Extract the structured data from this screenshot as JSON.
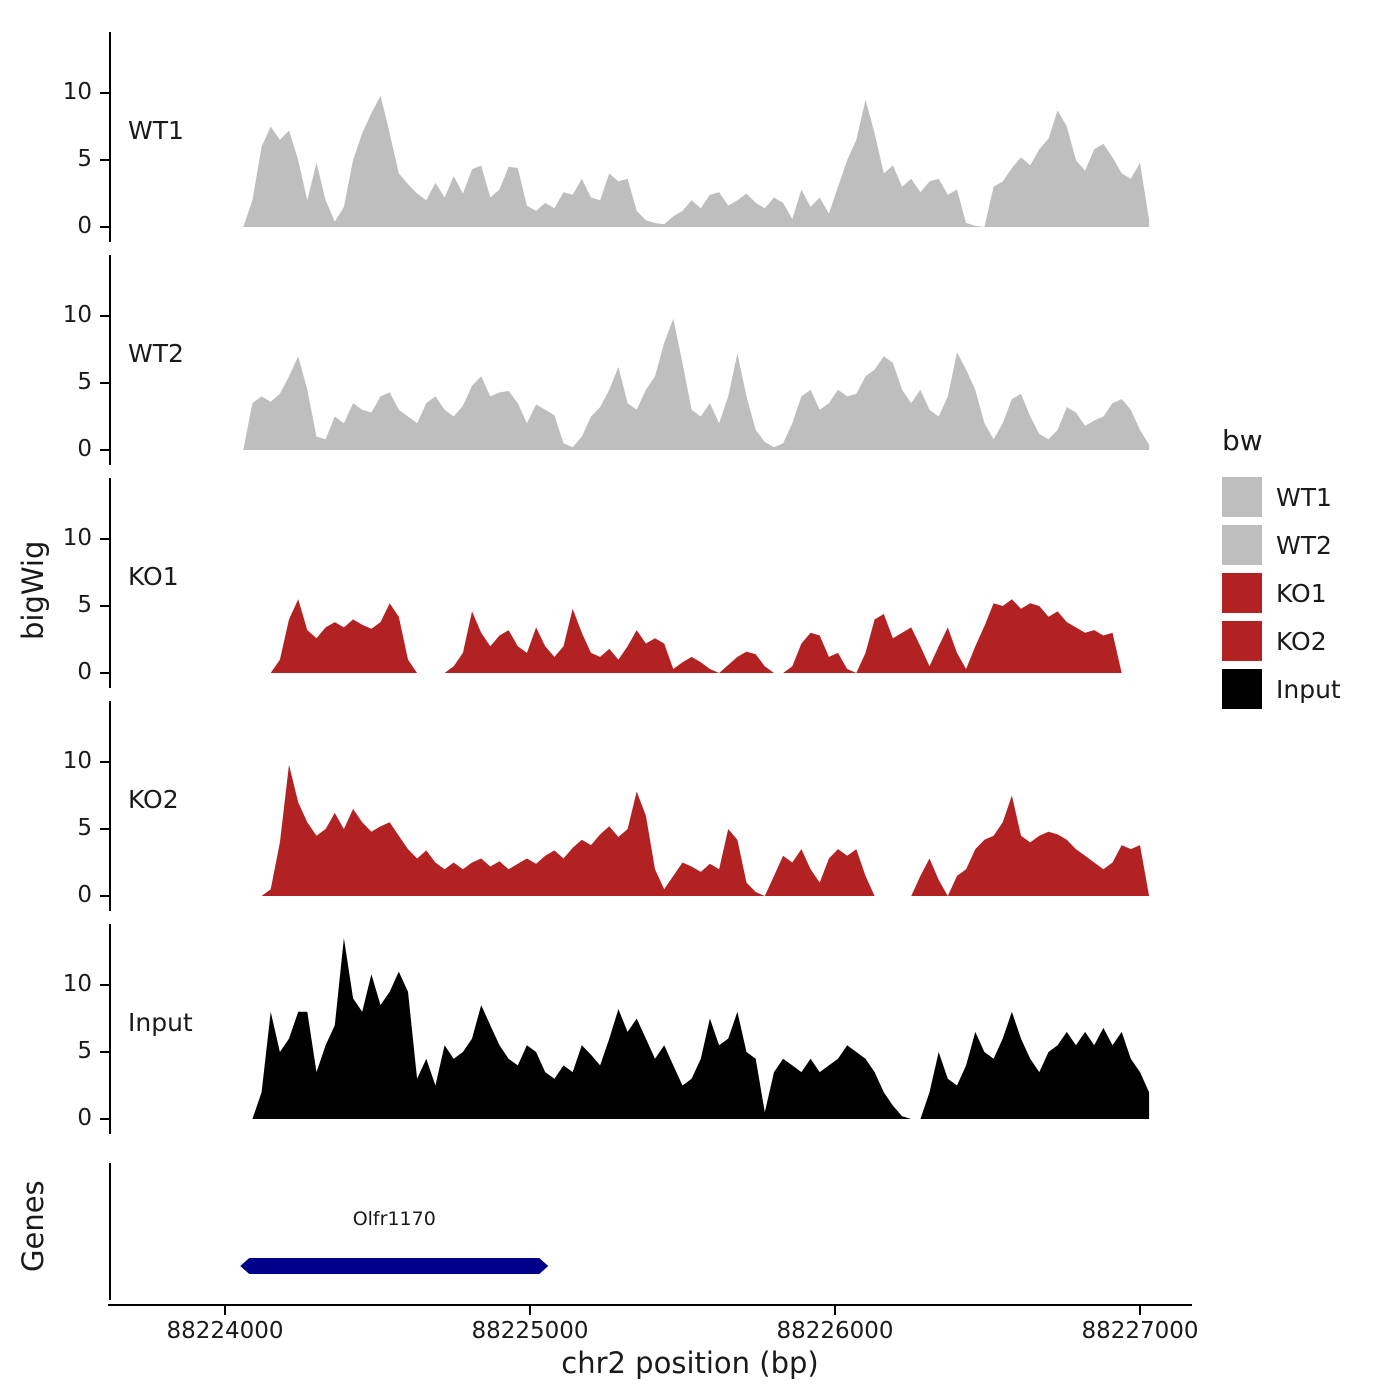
{
  "y_axis_label": "bigWig",
  "genes_axis_label": "Genes",
  "x_axis": {
    "title": "chr2 position (bp)",
    "ticks": [
      88224000,
      88225000,
      88226000,
      88227000
    ],
    "tick_labels": [
      "88224000",
      "88225000",
      "88226000",
      "88227000"
    ],
    "range": [
      88223620,
      88227160
    ]
  },
  "legend": {
    "title": "bw",
    "entries": [
      {
        "label": "WT1",
        "color": "#bebebe"
      },
      {
        "label": "WT2",
        "color": "#bebebe"
      },
      {
        "label": "KO1",
        "color": "#b22222"
      },
      {
        "label": "KO2",
        "color": "#b22222"
      },
      {
        "label": "Input",
        "color": "#000000"
      }
    ]
  },
  "gene": {
    "name": "Olfr1170",
    "start": 88224050,
    "end": 88225060,
    "color": "#00008b"
  },
  "chart_data": {
    "type": "area",
    "title": "",
    "xlabel": "chr2 position (bp)",
    "ylabel": "bigWig",
    "ylim": [
      0,
      13.5
    ],
    "y_ticks": [
      0,
      5,
      10
    ],
    "x_start": 88224060,
    "x_step": 30,
    "series": [
      {
        "name": "WT1",
        "color": "#bebebe",
        "values": [
          0,
          2,
          6,
          7.5,
          6.5,
          7.2,
          5,
          2,
          4.8,
          2,
          0.4,
          1.5,
          5,
          7,
          8.5,
          9.8,
          7,
          4,
          3.2,
          2.5,
          2,
          3.3,
          2.2,
          3.8,
          2.5,
          4.3,
          4.6,
          2.2,
          2.8,
          4.5,
          4.4,
          1.6,
          1.2,
          1.8,
          1.4,
          2.6,
          2.4,
          3.6,
          2.2,
          2,
          4,
          3.4,
          3.6,
          1.2,
          0.5,
          0.3,
          0.2,
          0.8,
          1.2,
          2,
          1.4,
          2.4,
          2.6,
          1.6,
          2,
          2.5,
          1.8,
          1.4,
          2.2,
          1.8,
          0.6,
          2.8,
          1.5,
          2.2,
          1,
          3,
          5,
          6.5,
          9.5,
          7,
          4,
          4.6,
          3,
          3.6,
          2.6,
          3.4,
          3.6,
          2.4,
          2.8,
          0.3,
          0.1,
          0,
          3,
          3.4,
          4.4,
          5.2,
          4.6,
          5.8,
          6.6,
          8.7,
          7.5,
          5,
          4.2,
          5.8,
          6.2,
          5.2,
          4,
          3.6,
          4.8,
          0.5
        ]
      },
      {
        "name": "WT2",
        "color": "#bebebe",
        "values": [
          0,
          3.5,
          4,
          3.6,
          4.2,
          5.5,
          7,
          4.5,
          1,
          0.8,
          2.5,
          2,
          3.5,
          3,
          2.8,
          4,
          4.3,
          3,
          2.5,
          2,
          3.5,
          4,
          3,
          2.5,
          3.3,
          4.8,
          5.5,
          4,
          4.3,
          4.4,
          3.5,
          2,
          3.4,
          3,
          2.6,
          0.5,
          0.2,
          1,
          2.5,
          3.2,
          4.5,
          6.2,
          3.5,
          3,
          4.5,
          5.5,
          8,
          9.8,
          6.5,
          3,
          2.5,
          3.5,
          2,
          4,
          7.2,
          4,
          1.5,
          0.6,
          0.2,
          0.5,
          2,
          4,
          4.5,
          3,
          3.5,
          4.5,
          4,
          4.2,
          5.5,
          6,
          7,
          6.5,
          4.5,
          3.5,
          4.5,
          3,
          2.5,
          4,
          7.3,
          6,
          4.5,
          2,
          0.8,
          2,
          3.8,
          4.2,
          2.5,
          1.2,
          0.8,
          1.5,
          3.2,
          2.8,
          1.8,
          2.2,
          2.5,
          3.5,
          3.8,
          3,
          1.5,
          0.4
        ]
      },
      {
        "name": "KO1",
        "color": "#b22222",
        "values": [
          0,
          0,
          0,
          0,
          1,
          4,
          5.5,
          3.2,
          2.6,
          3.4,
          3.8,
          3.4,
          4,
          3.6,
          3.3,
          3.8,
          5.2,
          4.2,
          1,
          0,
          0,
          0,
          0,
          0.5,
          1.5,
          4.6,
          3,
          2,
          2.8,
          3.2,
          2,
          1.5,
          3.4,
          2,
          1.2,
          2,
          4.8,
          3,
          1.5,
          1.2,
          1.8,
          1,
          2,
          3.2,
          2.2,
          2.6,
          2.2,
          0.3,
          0.8,
          1.2,
          0.8,
          0.3,
          0,
          0.6,
          1.2,
          1.6,
          1.4,
          0.5,
          0,
          0,
          0.5,
          2.2,
          3,
          2.8,
          1.2,
          1.5,
          0.3,
          0,
          1.5,
          4,
          4.4,
          2.6,
          3,
          3.4,
          2,
          0.5,
          2,
          3.4,
          1.5,
          0.3,
          2,
          3.5,
          5.2,
          5,
          5.5,
          4.8,
          5.2,
          5,
          4.2,
          4.6,
          3.8,
          3.4,
          3,
          3.2,
          2.8,
          3,
          0,
          0,
          0,
          0
        ]
      },
      {
        "name": "KO2",
        "color": "#b22222",
        "values": [
          0,
          0,
          0,
          0.5,
          4,
          9.8,
          7,
          5.5,
          4.5,
          5,
          6.2,
          5,
          6.5,
          5.5,
          4.8,
          5.2,
          5.5,
          4.5,
          3.5,
          2.8,
          3.4,
          2.5,
          2,
          2.5,
          2,
          2.5,
          2.8,
          2.2,
          2.6,
          2,
          2.4,
          2.8,
          2.4,
          3,
          3.4,
          2.8,
          3.6,
          4.2,
          3.8,
          4.6,
          5.2,
          4.4,
          5,
          7.8,
          6,
          2,
          0.5,
          1.5,
          2.5,
          2.2,
          1.8,
          2.4,
          2,
          5,
          4.2,
          1,
          0.3,
          0,
          1.5,
          3,
          2.5,
          3.5,
          2,
          1,
          2.8,
          3.5,
          3,
          3.5,
          1.5,
          0,
          0,
          0,
          0,
          0,
          1.5,
          2.8,
          1.2,
          0,
          1.5,
          2,
          3.5,
          4.2,
          4.5,
          5.5,
          7.5,
          4.5,
          4,
          4.5,
          4.8,
          4.6,
          4.2,
          3.5,
          3,
          2.5,
          2,
          2.5,
          3.8,
          3.5,
          3.8,
          0
        ]
      },
      {
        "name": "Input",
        "color": "#000000",
        "values": [
          0,
          0,
          2,
          8,
          5,
          6,
          8,
          8,
          3.5,
          5.5,
          7,
          13.5,
          9,
          8,
          10.8,
          8.5,
          9.5,
          11,
          9.5,
          3,
          4.5,
          2.5,
          5.5,
          4.5,
          5,
          6,
          8.5,
          7,
          5.5,
          4.5,
          4,
          5.5,
          5,
          3.5,
          3,
          4,
          3.5,
          5.5,
          4.8,
          4,
          6,
          8.2,
          6.5,
          7.5,
          6,
          4.5,
          5.5,
          4,
          2.5,
          3,
          4.5,
          7.5,
          5.5,
          6,
          8,
          5,
          4.5,
          0.5,
          3.5,
          4.5,
          4,
          3.5,
          4.5,
          3.5,
          4,
          4.5,
          5.5,
          5,
          4.5,
          3.5,
          2,
          1,
          0.2,
          0,
          0,
          2,
          5,
          3,
          2.5,
          4,
          6.5,
          5,
          4.5,
          6,
          8,
          6,
          4.5,
          3.5,
          5,
          5.5,
          6.5,
          5.5,
          6.5,
          5.5,
          6.8,
          5.5,
          6.5,
          4.5,
          3.5,
          2
        ]
      }
    ]
  }
}
